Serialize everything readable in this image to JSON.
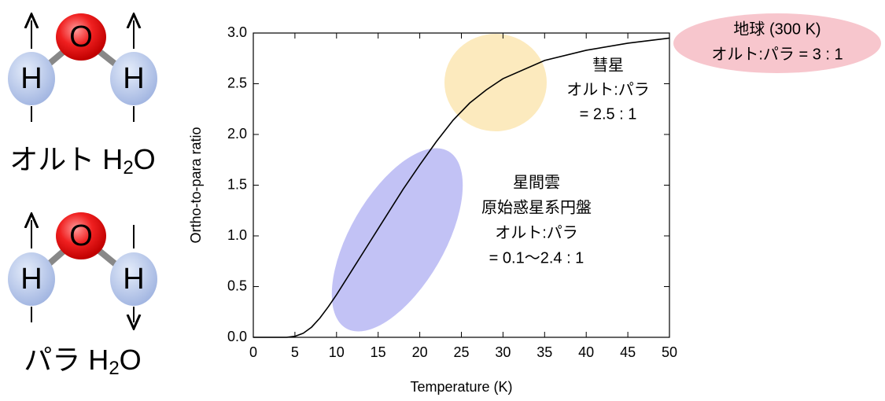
{
  "molecules": {
    "oxygen": "O",
    "hydrogen": "H",
    "ortho_label": {
      "prefix": "オルト H",
      "sub": "2",
      "suffix": "O"
    },
    "para_label": {
      "prefix": "パラ H",
      "sub": "2",
      "suffix": "O"
    }
  },
  "chart_data": {
    "type": "line",
    "x_label": "Temperature (K)",
    "y_label": "Ortho-to-para ratio",
    "xlim": [
      0,
      50
    ],
    "ylim": [
      0,
      3
    ],
    "xticks": [
      0,
      5,
      10,
      15,
      20,
      25,
      30,
      35,
      40,
      45,
      50
    ],
    "yticks": [
      {
        "value": 0,
        "label": "0.0"
      },
      0.5,
      {
        "value": 1,
        "label": "1.0"
      },
      1.5,
      {
        "value": 2,
        "label": "2.0"
      },
      2.5,
      {
        "value": 3,
        "label": "3.0"
      }
    ],
    "x": [
      0,
      4,
      5,
      6,
      7,
      8,
      9,
      10,
      12,
      14,
      15,
      16,
      18,
      20,
      22,
      24,
      26,
      28,
      30,
      35,
      40,
      45,
      50
    ],
    "series": [
      {
        "color": "#000000",
        "values": [
          0,
          0,
          0.01,
          0.04,
          0.1,
          0.19,
          0.3,
          0.42,
          0.68,
          0.94,
          1.07,
          1.2,
          1.46,
          1.7,
          1.93,
          2.14,
          2.31,
          2.44,
          2.55,
          2.73,
          2.83,
          2.9,
          2.95
        ]
      }
    ],
    "annotations": {
      "interstellar": [
        "星間雲",
        "原始惑星系円盤",
        "オルト:パラ",
        "= 0.1〜2.4 : 1"
      ],
      "comet": [
        "彗星",
        "オルト:パラ",
        "= 2.5 : 1"
      ],
      "earth": [
        "地球 (300 K)",
        "オルト:パラ = 3 : 1"
      ]
    }
  }
}
